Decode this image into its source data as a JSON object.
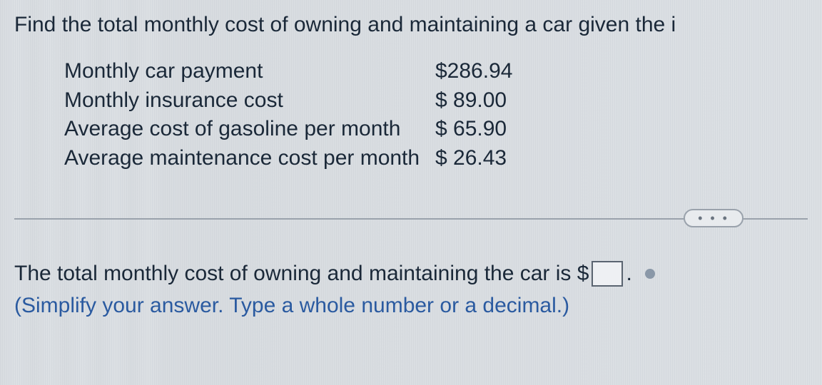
{
  "question": {
    "prompt": "Find the total monthly cost of owning and maintaining a car given the i"
  },
  "costs": {
    "rows": [
      {
        "label": "Monthly car payment",
        "value": "$286.94"
      },
      {
        "label": "Monthly insurance cost",
        "value": "$ 89.00"
      },
      {
        "label": "Average cost of gasoline per month",
        "value": "$ 65.90"
      },
      {
        "label": "Average maintenance cost per month",
        "value": "$ 26.43"
      }
    ]
  },
  "divider": {
    "ellipsis": "• • •"
  },
  "answer": {
    "lead": "The total monthly cost of owning and maintaining the car is $",
    "trail": ".",
    "hint": "(Simplify your answer. Type a whole number or a decimal.)"
  },
  "style": {
    "text_color": "#1a2838",
    "hint_color": "#2a5aa0",
    "border_color": "#9aa2ac",
    "background": "#dce0e4",
    "fontsize_main": 30
  }
}
